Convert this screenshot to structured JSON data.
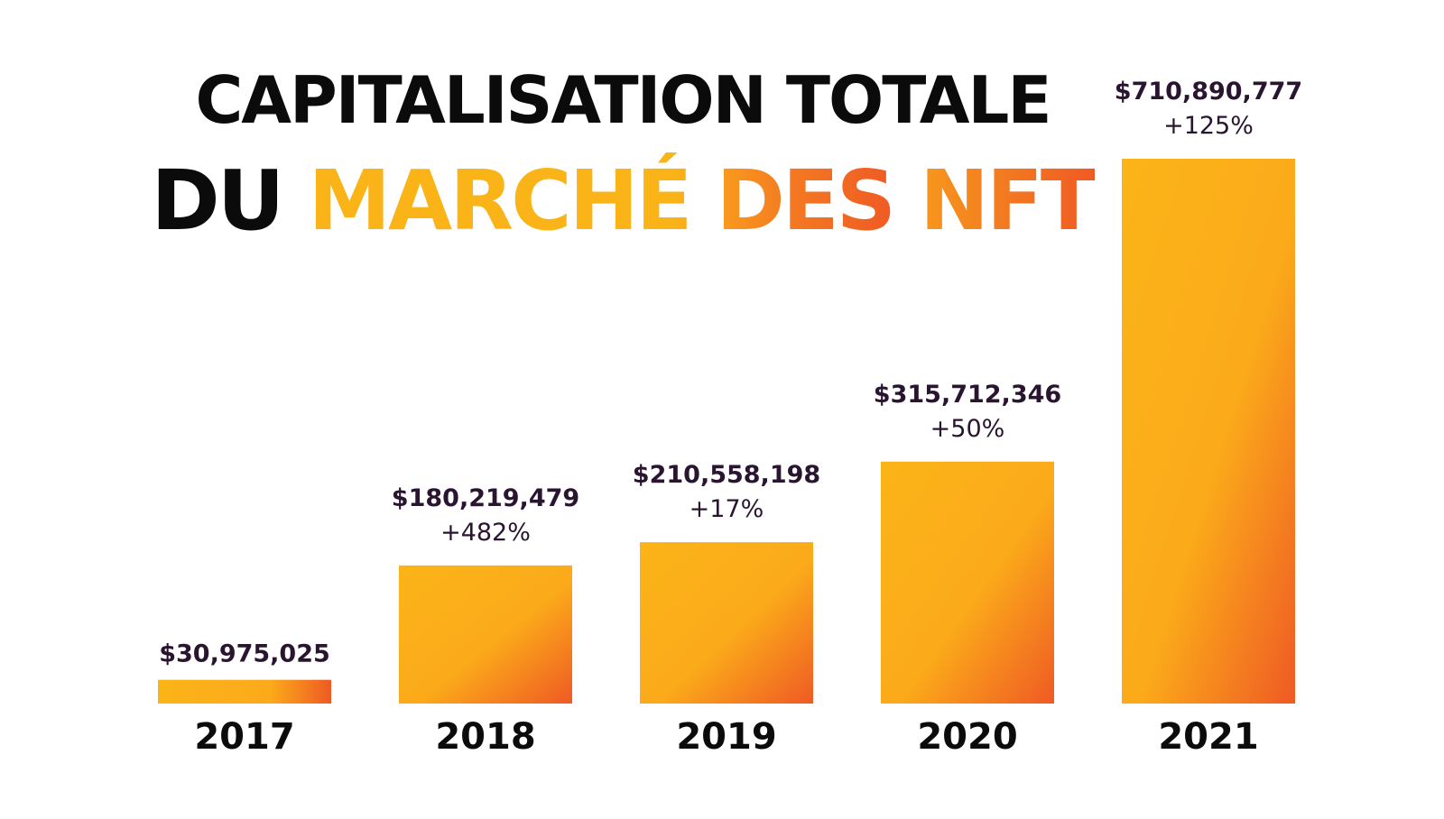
{
  "title": {
    "line1": "CAPITALISATION TOTALE",
    "line2_part1": "DU",
    "line2_part2": "MARCHÉ DES",
    "line2_part3": "NFT"
  },
  "colors": {
    "bar_start": "#fbb418",
    "bar_end": "#ef5a24",
    "value_text": "#2a1530",
    "year_text": "#0b0b0b"
  },
  "chart_data": {
    "type": "bar",
    "title": "CAPITALISATION TOTALE DU MARCHÉ DES NFT",
    "categories": [
      "2017",
      "2018",
      "2019",
      "2020",
      "2021"
    ],
    "values": [
      30975025,
      180219479,
      210558198,
      315712346,
      710890777
    ],
    "value_labels": [
      "$30,975,025",
      "$180,219,479",
      "$210,558,198",
      "$315,712,346",
      "$710,890,777"
    ],
    "growth_labels": [
      "",
      "+482%",
      "+17%",
      "+50%",
      "+125%"
    ],
    "xlabel": "",
    "ylabel": "",
    "ylim": [
      0,
      710890777
    ],
    "grid": false,
    "legend": "none"
  }
}
